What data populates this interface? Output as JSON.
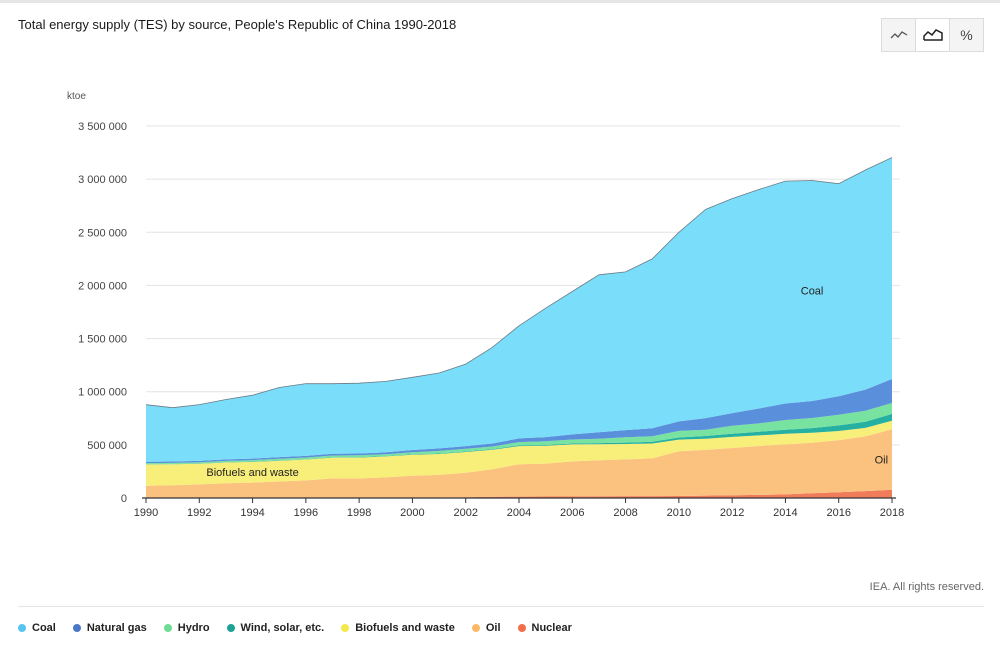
{
  "title": "Total energy supply (TES) by source, People's Republic of China 1990-2018",
  "toggles": [
    {
      "name": "line-chart-toggle",
      "icon": "line-chart-icon"
    },
    {
      "name": "area-chart-toggle",
      "icon": "area-chart-icon",
      "active": true
    },
    {
      "name": "percent-toggle",
      "icon": "percent-icon",
      "label": "%"
    }
  ],
  "copyright": "IEA. All rights reserved.",
  "chart_data": {
    "type": "area",
    "stacked": true,
    "ylabel": "ktoe",
    "ylim": [
      0,
      3500000
    ],
    "yticks": [
      0,
      500000,
      1000000,
      1500000,
      2000000,
      2500000,
      3000000,
      3500000
    ],
    "ytick_labels": [
      "0",
      "500 000",
      "1 000 000",
      "1 500 000",
      "2 000 000",
      "2 500 000",
      "3 000 000",
      "3 500 000"
    ],
    "xticks": [
      1990,
      1992,
      1994,
      1996,
      1998,
      2000,
      2002,
      2004,
      2006,
      2008,
      2010,
      2012,
      2014,
      2016,
      2018
    ],
    "x": [
      1990,
      1991,
      1992,
      1993,
      1994,
      1995,
      1996,
      1997,
      1998,
      1999,
      2000,
      2001,
      2002,
      2003,
      2004,
      2005,
      2006,
      2007,
      2008,
      2009,
      2010,
      2011,
      2012,
      2013,
      2014,
      2015,
      2016,
      2017,
      2018
    ],
    "grid": true,
    "legend_position": "bottom",
    "series": [
      {
        "name": "Nuclear",
        "color": "#f07c5a",
        "values": [
          0,
          0,
          0,
          1000,
          3000,
          3000,
          4000,
          4000,
          4000,
          4000,
          4000,
          5000,
          7000,
          11000,
          13000,
          14000,
          14000,
          16000,
          18000,
          18000,
          19000,
          23000,
          25000,
          29000,
          34000,
          44000,
          55000,
          65000,
          77000
        ]
      },
      {
        "name": "Oil",
        "color": "#fbc27f",
        "values": [
          115000,
          120000,
          128000,
          138000,
          142000,
          152000,
          162000,
          180000,
          180000,
          190000,
          205000,
          212000,
          230000,
          260000,
          305000,
          310000,
          330000,
          340000,
          345000,
          355000,
          420000,
          430000,
          445000,
          460000,
          470000,
          475000,
          490000,
          515000,
          570000
        ]
      },
      {
        "name": "Biofuels and waste",
        "color": "#f8ef7a",
        "values": [
          200000,
          197000,
          195000,
          195000,
          195000,
          196000,
          196000,
          196000,
          196000,
          197000,
          198000,
          197000,
          196000,
          183000,
          170000,
          167000,
          160000,
          150000,
          145000,
          140000,
          110000,
          105000,
          105000,
          100000,
          100000,
          95000,
          85000,
          80000,
          80000
        ]
      },
      {
        "name": "Wind, solar, etc.",
        "color": "#25b0a2",
        "values": [
          2000,
          2000,
          2000,
          2000,
          3000,
          3000,
          3000,
          3000,
          4000,
          4000,
          5000,
          5000,
          5000,
          6000,
          7000,
          8000,
          9000,
          11000,
          13000,
          16000,
          20000,
          25000,
          29000,
          35000,
          39000,
          44000,
          53000,
          58000,
          64000
        ]
      },
      {
        "name": "Hydro",
        "color": "#78e2a0",
        "values": [
          11000,
          11000,
          11000,
          13000,
          14000,
          16000,
          16000,
          17000,
          18000,
          17000,
          19000,
          24000,
          25000,
          25000,
          31000,
          34000,
          37000,
          41000,
          50000,
          52000,
          62000,
          59000,
          75000,
          78000,
          91000,
          95000,
          100000,
          102000,
          104000
        ]
      },
      {
        "name": "Natural gas",
        "color": "#5a8fdb",
        "values": [
          13000,
          13000,
          13000,
          14000,
          14000,
          15000,
          15000,
          17000,
          17000,
          18000,
          21000,
          24000,
          25000,
          28000,
          35000,
          40000,
          48000,
          60000,
          68000,
          75000,
          90000,
          110000,
          120000,
          140000,
          155000,
          160000,
          175000,
          200000,
          225000
        ]
      },
      {
        "name": "Coal",
        "color": "#7addf9",
        "values": [
          537000,
          507000,
          530000,
          564000,
          596000,
          655000,
          680000,
          658000,
          661000,
          667000,
          684000,
          709000,
          772000,
          905000,
          1059000,
          1213000,
          1345000,
          1482000,
          1488000,
          1594000,
          1779000,
          1962000,
          2018000,
          2061000,
          2093000,
          2074000,
          1999000,
          2066000,
          2084000
        ]
      }
    ],
    "annotations": [
      {
        "text": "Coal",
        "series": "Coal"
      },
      {
        "text": "Oil",
        "series": "Oil"
      },
      {
        "text": "Biofuels and waste",
        "series": "Biofuels and waste"
      }
    ]
  },
  "legend": [
    {
      "label": "Coal",
      "color": "#57c3f0"
    },
    {
      "label": "Natural gas",
      "color": "#4a78c8"
    },
    {
      "label": "Hydro",
      "color": "#6fdc95"
    },
    {
      "label": "Wind, solar, etc.",
      "color": "#1fa296"
    },
    {
      "label": "Biofuels and waste",
      "color": "#f5e84d"
    },
    {
      "label": "Oil",
      "color": "#fbb867"
    },
    {
      "label": "Nuclear",
      "color": "#ef6f4b"
    }
  ]
}
